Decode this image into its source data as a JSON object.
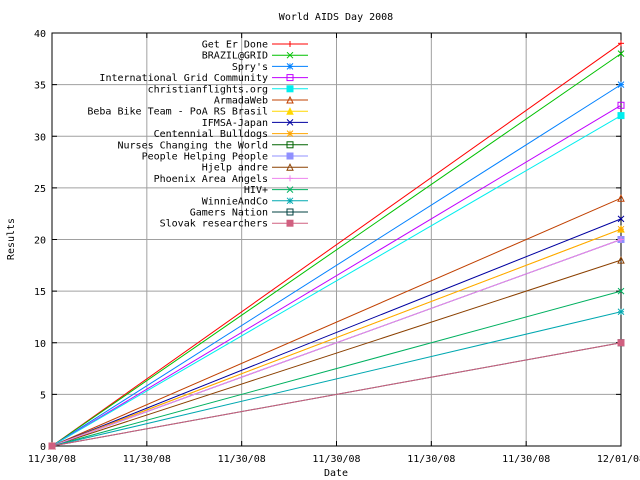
{
  "chart_data": {
    "type": "line",
    "title": "World AIDS Day 2008",
    "xlabel": "Date",
    "ylabel": "Results",
    "ylim": [
      0,
      40
    ],
    "y_ticks": [
      0,
      5,
      10,
      15,
      20,
      25,
      30,
      35,
      40
    ],
    "x_tick_labels": [
      "11/30/08",
      "11/30/08",
      "11/30/08",
      "11/30/08",
      "11/30/08",
      "11/30/08",
      "12/01/08"
    ],
    "x": [
      "11/30/08",
      "12/01/08"
    ],
    "grid": true,
    "legend_position": "top-left",
    "series": [
      {
        "name": "Get Er Done",
        "color": "#ff0000",
        "marker": "plus",
        "values": [
          0,
          39
        ]
      },
      {
        "name": "BRAZIL@GRID",
        "color": "#00c000",
        "marker": "cross",
        "values": [
          0,
          38
        ]
      },
      {
        "name": "Spry's",
        "color": "#0080ff",
        "marker": "star",
        "values": [
          0,
          35
        ]
      },
      {
        "name": "International Grid Community",
        "color": "#c000ff",
        "marker": "square",
        "values": [
          0,
          33
        ]
      },
      {
        "name": "christianflights.org",
        "color": "#00eeee",
        "marker": "filled-square",
        "values": [
          0,
          32
        ]
      },
      {
        "name": "ArmadaWeb",
        "color": "#c04000",
        "marker": "triangle",
        "values": [
          0,
          24
        ]
      },
      {
        "name": "Beba Bike Team - PoA RS Brasil",
        "color": "#ffd700",
        "marker": "filled-triangle",
        "values": [
          0,
          21
        ]
      },
      {
        "name": "IFMSA-Japan",
        "color": "#0000a0",
        "marker": "cross",
        "values": [
          0,
          22
        ]
      },
      {
        "name": "Centennial Bulldogs",
        "color": "#ffa500",
        "marker": "star",
        "values": [
          0,
          21
        ]
      },
      {
        "name": "Nurses Changing the World",
        "color": "#006400",
        "marker": "square",
        "values": [
          0,
          20
        ]
      },
      {
        "name": "People Helping People",
        "color": "#9090ff",
        "marker": "filled-square",
        "values": [
          0,
          20
        ]
      },
      {
        "name": "Hjelp andre",
        "color": "#8b4000",
        "marker": "triangle",
        "values": [
          0,
          18
        ]
      },
      {
        "name": "Phoenix Area Angels",
        "color": "#ee82ee",
        "marker": "plus",
        "values": [
          0,
          20
        ]
      },
      {
        "name": "HIV+",
        "color": "#00b060",
        "marker": "cross",
        "values": [
          0,
          15
        ]
      },
      {
        "name": "WinnieAndCo",
        "color": "#00a8b0",
        "marker": "star",
        "values": [
          0,
          13
        ]
      },
      {
        "name": "Gamers Nation",
        "color": "#004040",
        "marker": "square",
        "values": [
          0,
          10
        ]
      },
      {
        "name": "Slovak researchers",
        "color": "#d06080",
        "marker": "filled-square",
        "values": [
          0,
          10
        ]
      }
    ]
  }
}
